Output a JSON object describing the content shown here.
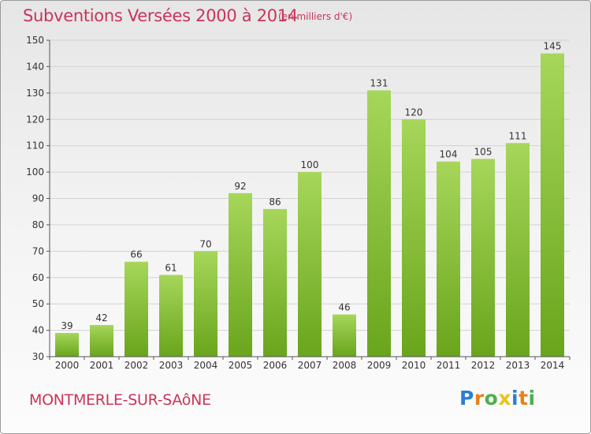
{
  "header": {
    "title": "Subventions Versées 2000 à 2014",
    "subtitle": "(en milliers d'€)"
  },
  "footer": {
    "commune": "MONTMERLE-SUR-SAôNE",
    "logo_letters": [
      "P",
      "r",
      "o",
      "x",
      "i",
      "t",
      "i"
    ],
    "logo_colors": [
      "#2a7fd4",
      "#e8801e",
      "#4caf50",
      "#e8c21e",
      "#2a7fd4",
      "#e8801e",
      "#4caf50"
    ]
  },
  "chart_data": {
    "type": "bar",
    "categories": [
      "2000",
      "2001",
      "2002",
      "2003",
      "2004",
      "2005",
      "2006",
      "2007",
      "2008",
      "2009",
      "2010",
      "2011",
      "2012",
      "2013",
      "2014"
    ],
    "values": [
      39,
      42,
      66,
      61,
      70,
      92,
      86,
      100,
      46,
      131,
      120,
      104,
      105,
      111,
      145
    ],
    "title": "Subventions Versées 2000 à 2014",
    "subtitle": "(en milliers d'€)",
    "ylim": [
      30,
      150
    ],
    "yticks": [
      30,
      40,
      50,
      60,
      70,
      80,
      90,
      100,
      110,
      120,
      130,
      140,
      150
    ],
    "grid": true,
    "colors": {
      "bar_light": "#a6d65a",
      "bar_dark": "#69a51c",
      "grid": "#d2d2d2",
      "text": "#333333"
    }
  }
}
